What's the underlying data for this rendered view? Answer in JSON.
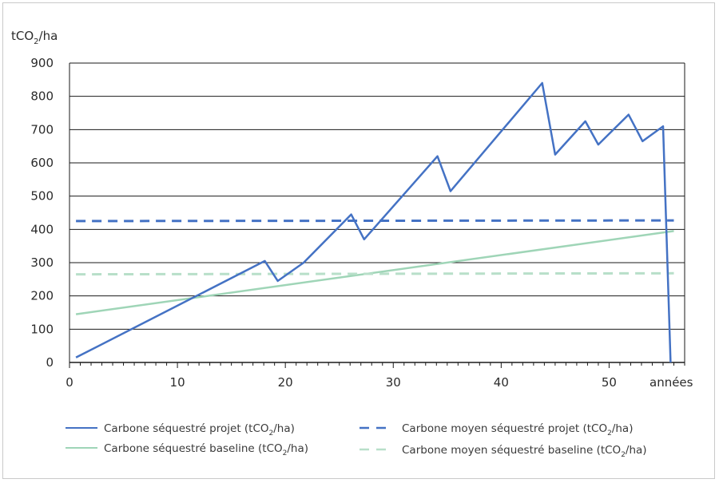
{
  "chart_data": {
    "type": "line",
    "ylabel": "tCO2/ha",
    "xlabel": "années",
    "xlim": [
      0,
      57
    ],
    "ylim": [
      0,
      900
    ],
    "x_ticks": [
      0,
      10,
      20,
      30,
      40,
      50
    ],
    "y_ticks": [
      0,
      100,
      200,
      300,
      400,
      500,
      600,
      700,
      800,
      900
    ],
    "grid": "horizontal",
    "legend_position": "bottom",
    "series": [
      {
        "name": "Carbone séquestré projet (tCO2/ha)",
        "style": "solid",
        "color": "#4472c4",
        "x": [
          0.6,
          18.1,
          19.3,
          21.7,
          26.1,
          27.3,
          34.1,
          35.3,
          43.8,
          45.0,
          47.8,
          49.0,
          51.8,
          53.1,
          55.0,
          55.7
        ],
        "y": [
          15,
          305,
          245,
          300,
          445,
          370,
          620,
          515,
          840,
          625,
          725,
          655,
          745,
          665,
          710,
          0
        ]
      },
      {
        "name": "Carbone moyen séquestré projet (tCO2/ha)",
        "style": "dashed",
        "color": "#4472c4",
        "x": [
          0.6,
          56.0
        ],
        "y": [
          425,
          427
        ]
      },
      {
        "name": "Carbone séquestré baseline (tCO2/ha)",
        "style": "solid",
        "color": "#9fd5b7",
        "x": [
          0.6,
          56.0
        ],
        "y": [
          145,
          395
        ]
      },
      {
        "name": "Carbone moyen séquestré baseline (tCO2/ha)",
        "style": "dashed",
        "color": "#9fd5b7",
        "x": [
          0.6,
          56.0
        ],
        "y": [
          265,
          268
        ]
      }
    ]
  },
  "legend": [
    {
      "label": "Carbone séquestré projet (tCO",
      "sub": "2",
      "tail": "/ha)"
    },
    {
      "label": "Carbone moyen séquestré projet (tCO",
      "sub": "2",
      "tail": "/ha)"
    },
    {
      "label": "Carbone séquestré baseline (tCO",
      "sub": "2",
      "tail": "/ha)"
    },
    {
      "label": "Carbone moyen séquestré baseline (tCO",
      "sub": "2",
      "tail": "/ha)"
    }
  ],
  "axis_label": {
    "y_main": "tCO",
    "y_sub": "2",
    "y_tail": "/ha",
    "x": "années"
  }
}
